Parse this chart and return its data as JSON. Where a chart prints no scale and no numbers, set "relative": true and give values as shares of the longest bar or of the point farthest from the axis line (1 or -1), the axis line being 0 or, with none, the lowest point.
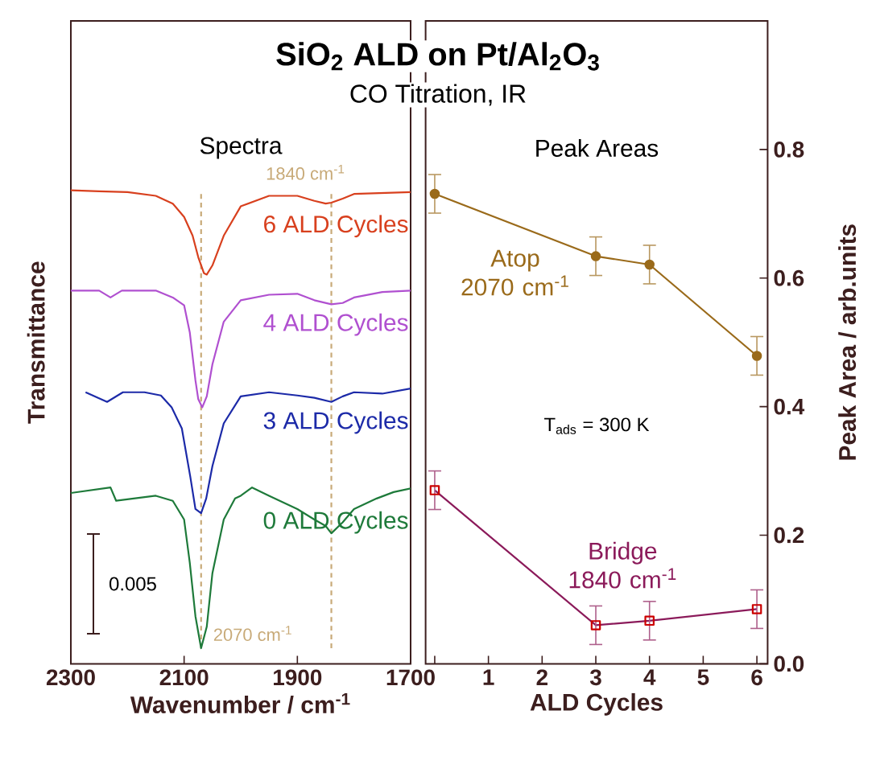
{
  "chart_data": [
    {
      "type": "line",
      "title": "SiO$_{2}$ ALD on Pt/Al$_{2}$O$_{3}$",
      "subtitle": "CO Titration, IR",
      "xlabel": "Wavenumber / cm$^{-1}$",
      "ylabel": "Transmittance",
      "relative": true,
      "tick_labels": "x",
      "xlim": [
        2300,
        1700
      ],
      "xticks": [
        2300,
        2100,
        1900,
        1700
      ],
      "annotations": [
        "Spectra",
        "0.005"
      ],
      "ref_lines": [
        {
          "axis": "x",
          "value": 2070,
          "label": "2070 cm$^{-1}$",
          "color": "#c8aa78",
          "line_style": "dashed"
        },
        {
          "axis": "x",
          "value": 1840,
          "label": "1840 cm$^{-1}$",
          "color": "#c8aa78",
          "line_style": "dashed"
        }
      ],
      "series": [
        {
          "name": "6 ALD Cycles",
          "color": "#d8401e",
          "x": [
            2300,
            2250,
            2200,
            2150,
            2120,
            2100,
            2085,
            2075,
            2065,
            2060,
            2050,
            2030,
            2000,
            1950,
            1900,
            1870,
            1850,
            1840,
            1820,
            1800,
            1750,
            1700
          ],
          "values": [
            1.0,
            0.998,
            0.996,
            0.988,
            0.971,
            0.942,
            0.901,
            0.854,
            0.819,
            0.816,
            0.836,
            0.901,
            0.965,
            0.988,
            0.988,
            0.977,
            0.971,
            0.973,
            0.982,
            0.992,
            0.994,
            0.996
          ]
        },
        {
          "name": "4 ALD Cycles",
          "color": "#b050d0",
          "x": [
            2300,
            2250,
            2230,
            2210,
            2150,
            2120,
            2100,
            2090,
            2080,
            2075,
            2068,
            2060,
            2050,
            2030,
            2000,
            1950,
            1900,
            1870,
            1840,
            1820,
            1800,
            1750,
            1700
          ],
          "values": [
            0.781,
            0.781,
            0.766,
            0.781,
            0.781,
            0.766,
            0.749,
            0.69,
            0.585,
            0.544,
            0.526,
            0.55,
            0.62,
            0.713,
            0.76,
            0.772,
            0.774,
            0.76,
            0.751,
            0.754,
            0.766,
            0.778,
            0.781
          ]
        },
        {
          "name": "3 ALD Cycles",
          "color": "#1c2aa8",
          "x": [
            2274,
            2236,
            2208,
            2170,
            2141,
            2122,
            2104,
            2089,
            2080,
            2070,
            2061,
            2050,
            2030,
            2000,
            1950,
            1900,
            1870,
            1840,
            1820,
            1800,
            1750,
            1700
          ],
          "values": [
            0.559,
            0.538,
            0.559,
            0.559,
            0.552,
            0.526,
            0.48,
            0.374,
            0.304,
            0.295,
            0.327,
            0.398,
            0.491,
            0.55,
            0.559,
            0.552,
            0.547,
            0.538,
            0.55,
            0.559,
            0.556,
            0.567
          ]
        },
        {
          "name": "0 ALD Cycles",
          "color": "#1e7a3a",
          "x": [
            2300,
            2230,
            2220,
            2150,
            2120,
            2100,
            2090,
            2080,
            2070,
            2060,
            2050,
            2030,
            2010,
            2000,
            1980,
            1950,
            1900,
            1870,
            1850,
            1840,
            1820,
            1800,
            1760,
            1730,
            1700
          ],
          "values": [
            0.339,
            0.351,
            0.322,
            0.333,
            0.322,
            0.281,
            0.187,
            0.07,
            0,
            0.047,
            0.164,
            0.281,
            0.327,
            0.333,
            0.351,
            0.333,
            0.304,
            0.281,
            0.267,
            0.251,
            0.275,
            0.304,
            0.327,
            0.341,
            0.349
          ]
        }
      ]
    },
    {
      "type": "line",
      "title": "Peak Areas",
      "xlabel": "ALD Cycles",
      "ylabel": "Peak Area / arb.units",
      "xlim": [
        -0.17,
        6.2
      ],
      "xticks": [
        {
          "value": 0,
          "label": null
        },
        1,
        2,
        3,
        4,
        5,
        6
      ],
      "ylim": [
        0,
        1.0
      ],
      "yticks": [
        {
          "value": 0,
          "label": "0.0"
        },
        0.2,
        0.4,
        0.6,
        0.8
      ],
      "annotations": [
        "T$_{ads}$ = 300 K"
      ],
      "series": [
        {
          "name": "Atop 2070 cm$^{-1}$",
          "color": "#9a6a1a",
          "marker": "circle",
          "x": [
            0,
            3,
            4,
            6
          ],
          "values": [
            0.731,
            0.634,
            0.621,
            0.479
          ],
          "errors": [
            0.03,
            0.03,
            0.03,
            0.03
          ]
        },
        {
          "name": "Bridge 1840 cm$^{-1}$",
          "color": "#8b1a5a",
          "marker": "square",
          "x": [
            0,
            3,
            4,
            6
          ],
          "values": [
            0.27,
            0.06,
            0.067,
            0.085
          ],
          "errors": [
            0.03,
            0.03,
            0.03,
            0.03
          ]
        }
      ]
    }
  ]
}
